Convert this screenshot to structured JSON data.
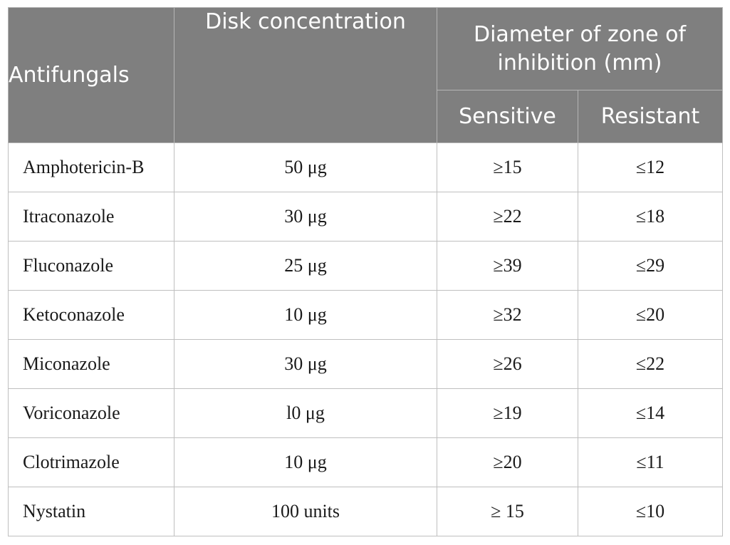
{
  "table": {
    "headers": {
      "antifungals": "Antifungals",
      "disk_concentration": "Disk concentration",
      "diameter_zone": "Diameter of zone of inhibition (mm)",
      "sensitive": "Sensitive",
      "resistant": "Resistant"
    },
    "rows": [
      {
        "antifungal": "Amphotericin-B",
        "disk": "50 μg",
        "sensitive": "≥15",
        "resistant": "≤12"
      },
      {
        "antifungal": "Itraconazole",
        "disk": "30 μg",
        "sensitive": "≥22",
        "resistant": "≤18"
      },
      {
        "antifungal": "Fluconazole",
        "disk": "25 μg",
        "sensitive": "≥39",
        "resistant": "≤29"
      },
      {
        "antifungal": "Ketoconazole",
        "disk": "10 μg",
        "sensitive": "≥32",
        "resistant": "≤20"
      },
      {
        "antifungal": "Miconazole",
        "disk": "30 μg",
        "sensitive": "≥26",
        "resistant": "≤22"
      },
      {
        "antifungal": "Voriconazole",
        "disk": "l0 μg",
        "sensitive": "≥19",
        "resistant": "≤14"
      },
      {
        "antifungal": "Clotrimazole",
        "disk": "10 μg",
        "sensitive": "≥20",
        "resistant": "≤11"
      },
      {
        "antifungal": "Nystatin",
        "disk": "100 units",
        "sensitive": "≥ 15",
        "resistant": "≤10"
      }
    ]
  },
  "colors": {
    "header_bg": "#7f7f7f",
    "header_text": "#ffffff",
    "border": "#bfbfbf",
    "body_text": "#1a1a1a"
  }
}
